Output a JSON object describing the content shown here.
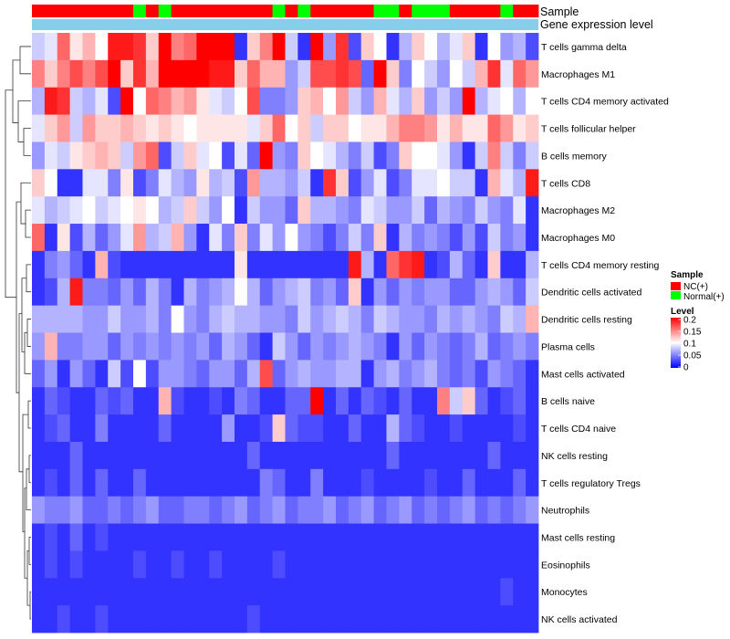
{
  "chart_data": {
    "type": "heatmap",
    "annotation_labels": {
      "sample": "Sample",
      "gene_level": "Gene expression level"
    },
    "rows": [
      "T cells gamma delta",
      "Macrophages M1",
      "T cells CD4 memory activated",
      "T cells follicular helper",
      "B cells memory",
      "T cells CD8",
      "Macrophages M2",
      "Macrophages M0",
      "T cells CD4 memory resting",
      "Dendritic cells activated",
      "Dendritic cells resting",
      "Plasma cells",
      "Mast cells activated",
      "B cells naive",
      "T cells CD4 naive",
      "NK cells resting",
      "T cells regulatory  Tregs",
      "Neutrophils",
      "Mast cells resting",
      "Eosinophils",
      "Monocytes",
      "NK cells activated"
    ],
    "sample_groups": [
      "NC",
      "NC",
      "NC",
      "NC",
      "NC",
      "NC",
      "NC",
      "NC",
      "Normal",
      "NC",
      "Normal",
      "NC",
      "NC",
      "NC",
      "NC",
      "NC",
      "NC",
      "NC",
      "NC",
      "Normal",
      "NC",
      "Normal",
      "NC",
      "NC",
      "NC",
      "NC",
      "NC",
      "Normal",
      "Normal",
      "NC",
      "Normal",
      "Normal",
      "Normal",
      "NC",
      "NC",
      "NC",
      "NC",
      "Normal",
      "NC",
      "NC"
    ],
    "values": [
      [
        0.08,
        0.09,
        0.16,
        0.11,
        0.13,
        0.1,
        0.19,
        0.19,
        0.18,
        0.12,
        0.2,
        0.15,
        0.16,
        0.2,
        0.2,
        0.2,
        0.02,
        0.12,
        0.15,
        0.2,
        0.08,
        0.02,
        0.2,
        0.06,
        0.18,
        0.03,
        0.12,
        0.1,
        0.02,
        0.07,
        0.12,
        0.1,
        0.07,
        0.09,
        0.12,
        0.02,
        0.1,
        0.06,
        0.07,
        0.03
      ],
      [
        0.15,
        0.12,
        0.15,
        0.17,
        0.15,
        0.17,
        0.2,
        0.12,
        0.18,
        0.13,
        0.2,
        0.2,
        0.2,
        0.2,
        0.19,
        0.19,
        0.12,
        0.16,
        0.13,
        0.13,
        0.06,
        0.08,
        0.17,
        0.17,
        0.18,
        0.17,
        0.04,
        0.2,
        0.12,
        0.05,
        0.1,
        0.08,
        0.06,
        0.1,
        0.08,
        0.13,
        0.18,
        0.09,
        0.16,
        0.14
      ],
      [
        0.07,
        0.19,
        0.18,
        0.08,
        0.07,
        0.09,
        0.03,
        0.2,
        0.1,
        0.16,
        0.15,
        0.13,
        0.14,
        0.11,
        0.09,
        0.08,
        0.1,
        0.17,
        0.05,
        0.05,
        0.06,
        0.12,
        0.13,
        0.1,
        0.14,
        0.08,
        0.06,
        0.13,
        0.09,
        0.07,
        0.12,
        0.06,
        0.08,
        0.06,
        0.2,
        0.07,
        0.09,
        0.1,
        0.07,
        0.1
      ],
      [
        0.09,
        0.12,
        0.14,
        0.08,
        0.14,
        0.12,
        0.12,
        0.13,
        0.12,
        0.11,
        0.12,
        0.11,
        0.1,
        0.11,
        0.11,
        0.11,
        0.11,
        0.09,
        0.12,
        0.16,
        0.1,
        0.12,
        0.08,
        0.12,
        0.12,
        0.1,
        0.11,
        0.11,
        0.13,
        0.15,
        0.15,
        0.14,
        0.11,
        0.13,
        0.11,
        0.11,
        0.16,
        0.14,
        0.11,
        0.12
      ],
      [
        0.06,
        0.09,
        0.08,
        0.11,
        0.12,
        0.13,
        0.12,
        0.08,
        0.14,
        0.16,
        0.03,
        0.08,
        0.12,
        0.09,
        0.1,
        0.03,
        0.09,
        0.04,
        0.2,
        0.06,
        0.05,
        0.12,
        0.1,
        0.09,
        0.07,
        0.05,
        0.08,
        0.03,
        0.05,
        0.12,
        0.1,
        0.1,
        0.09,
        0.06,
        0.02,
        0.08,
        0.15,
        0.08,
        0.05,
        0.08
      ],
      [
        0.12,
        0.1,
        0.02,
        0.02,
        0.09,
        0.09,
        0.05,
        0.11,
        0.03,
        0.05,
        0.09,
        0.07,
        0.06,
        0.11,
        0.07,
        0.08,
        0.03,
        0.14,
        0.07,
        0.07,
        0.06,
        0.08,
        0.02,
        0.18,
        0.12,
        0.03,
        0.06,
        0.09,
        0.03,
        0.05,
        0.09,
        0.09,
        0.1,
        0.08,
        0.08,
        0.02,
        0.13,
        0.09,
        0.07,
        0.19
      ],
      [
        0.09,
        0.07,
        0.08,
        0.09,
        0.1,
        0.08,
        0.09,
        0.1,
        0.11,
        0.1,
        0.07,
        0.08,
        0.12,
        0.08,
        0.06,
        0.1,
        0.02,
        0.08,
        0.06,
        0.06,
        0.04,
        0.12,
        0.07,
        0.07,
        0.06,
        0.05,
        0.09,
        0.08,
        0.06,
        0.06,
        0.08,
        0.04,
        0.07,
        0.06,
        0.05,
        0.08,
        0.06,
        0.05,
        0.09,
        0.02
      ],
      [
        0.16,
        0.02,
        0.11,
        0.03,
        0.07,
        0.04,
        0.06,
        0.09,
        0.14,
        0.07,
        0.08,
        0.13,
        0.06,
        0.02,
        0.09,
        0.05,
        0.12,
        0.05,
        0.09,
        0.06,
        0.1,
        0.06,
        0.05,
        0.03,
        0.05,
        0.08,
        0.05,
        0.12,
        0.02,
        0.07,
        0.05,
        0.06,
        0.05,
        0.03,
        0.06,
        0.03,
        0.08,
        0.05,
        0.06,
        0.02
      ],
      [
        0.02,
        0.05,
        0.06,
        0.04,
        0.02,
        0.13,
        0.03,
        0.02,
        0.02,
        0.02,
        0.02,
        0.02,
        0.02,
        0.02,
        0.02,
        0.02,
        0.11,
        0.02,
        0.02,
        0.02,
        0.02,
        0.02,
        0.02,
        0.02,
        0.02,
        0.19,
        0.07,
        0.02,
        0.16,
        0.18,
        0.19,
        0.02,
        0.03,
        0.07,
        0.04,
        0.02,
        0.12,
        0.02,
        0.02,
        0.07
      ],
      [
        0.02,
        0.03,
        0.07,
        0.19,
        0.05,
        0.05,
        0.04,
        0.06,
        0.04,
        0.07,
        0.05,
        0.02,
        0.07,
        0.05,
        0.06,
        0.07,
        0.1,
        0.07,
        0.04,
        0.06,
        0.07,
        0.08,
        0.05,
        0.06,
        0.04,
        0.12,
        0.02,
        0.06,
        0.04,
        0.06,
        0.05,
        0.06,
        0.06,
        0.04,
        0.04,
        0.06,
        0.07,
        0.06,
        0.04,
        0.08
      ],
      [
        0.07,
        0.07,
        0.07,
        0.07,
        0.06,
        0.06,
        0.08,
        0.06,
        0.06,
        0.07,
        0.05,
        0.1,
        0.06,
        0.05,
        0.07,
        0.08,
        0.07,
        0.07,
        0.06,
        0.06,
        0.05,
        0.08,
        0.06,
        0.07,
        0.08,
        0.07,
        0.05,
        0.08,
        0.07,
        0.06,
        0.06,
        0.05,
        0.07,
        0.06,
        0.07,
        0.06,
        0.05,
        0.08,
        0.07,
        0.13
      ],
      [
        0.06,
        0.13,
        0.05,
        0.05,
        0.06,
        0.06,
        0.04,
        0.06,
        0.05,
        0.06,
        0.05,
        0.06,
        0.05,
        0.06,
        0.04,
        0.07,
        0.06,
        0.04,
        0.02,
        0.08,
        0.06,
        0.04,
        0.06,
        0.05,
        0.06,
        0.07,
        0.06,
        0.05,
        0.02,
        0.06,
        0.04,
        0.06,
        0.05,
        0.04,
        0.05,
        0.07,
        0.04,
        0.05,
        0.06,
        0.05
      ],
      [
        0.04,
        0.06,
        0.02,
        0.06,
        0.04,
        0.02,
        0.08,
        0.03,
        0.1,
        0.03,
        0.06,
        0.06,
        0.05,
        0.04,
        0.06,
        0.06,
        0.04,
        0.07,
        0.17,
        0.04,
        0.06,
        0.07,
        0.06,
        0.06,
        0.07,
        0.07,
        0.02,
        0.06,
        0.07,
        0.05,
        0.06,
        0.07,
        0.05,
        0.04,
        0.05,
        0.03,
        0.06,
        0.05,
        0.04,
        0.02
      ],
      [
        0.02,
        0.04,
        0.03,
        0.02,
        0.02,
        0.04,
        0.03,
        0.04,
        0.02,
        0.02,
        0.13,
        0.03,
        0.02,
        0.02,
        0.03,
        0.02,
        0.05,
        0.04,
        0.02,
        0.02,
        0.04,
        0.04,
        0.2,
        0.02,
        0.04,
        0.02,
        0.04,
        0.03,
        0.02,
        0.04,
        0.02,
        0.02,
        0.15,
        0.08,
        0.12,
        0.04,
        0.02,
        0.03,
        0.04,
        0.02
      ],
      [
        0.02,
        0.03,
        0.04,
        0.02,
        0.02,
        0.05,
        0.02,
        0.02,
        0.02,
        0.02,
        0.04,
        0.02,
        0.02,
        0.02,
        0.02,
        0.06,
        0.02,
        0.02,
        0.03,
        0.12,
        0.04,
        0.03,
        0.03,
        0.02,
        0.02,
        0.04,
        0.02,
        0.02,
        0.07,
        0.04,
        0.03,
        0.02,
        0.02,
        0.03,
        0.02,
        0.02,
        0.02,
        0.02,
        0.03,
        0.02
      ],
      [
        0.02,
        0.02,
        0.02,
        0.04,
        0.02,
        0.02,
        0.02,
        0.02,
        0.02,
        0.02,
        0.02,
        0.02,
        0.02,
        0.02,
        0.02,
        0.02,
        0.02,
        0.04,
        0.02,
        0.02,
        0.02,
        0.02,
        0.02,
        0.02,
        0.02,
        0.02,
        0.02,
        0.02,
        0.04,
        0.02,
        0.02,
        0.02,
        0.02,
        0.02,
        0.02,
        0.02,
        0.04,
        0.02,
        0.02,
        0.02
      ],
      [
        0.02,
        0.03,
        0.02,
        0.04,
        0.02,
        0.04,
        0.02,
        0.02,
        0.04,
        0.02,
        0.02,
        0.02,
        0.02,
        0.02,
        0.02,
        0.02,
        0.02,
        0.02,
        0.05,
        0.04,
        0.02,
        0.02,
        0.05,
        0.02,
        0.02,
        0.02,
        0.03,
        0.02,
        0.02,
        0.02,
        0.02,
        0.03,
        0.02,
        0.02,
        0.04,
        0.02,
        0.02,
        0.02,
        0.04,
        0.02
      ],
      [
        0.06,
        0.05,
        0.05,
        0.06,
        0.04,
        0.04,
        0.05,
        0.04,
        0.05,
        0.06,
        0.04,
        0.04,
        0.05,
        0.05,
        0.04,
        0.05,
        0.06,
        0.04,
        0.05,
        0.06,
        0.04,
        0.05,
        0.05,
        0.06,
        0.04,
        0.05,
        0.06,
        0.04,
        0.05,
        0.06,
        0.04,
        0.05,
        0.04,
        0.05,
        0.06,
        0.04,
        0.05,
        0.04,
        0.05,
        0.06
      ],
      [
        0.02,
        0.03,
        0.02,
        0.04,
        0.02,
        0.03,
        0.02,
        0.02,
        0.02,
        0.02,
        0.02,
        0.02,
        0.02,
        0.02,
        0.02,
        0.02,
        0.02,
        0.02,
        0.02,
        0.02,
        0.02,
        0.02,
        0.02,
        0.02,
        0.02,
        0.02,
        0.02,
        0.02,
        0.02,
        0.02,
        0.02,
        0.02,
        0.02,
        0.02,
        0.02,
        0.02,
        0.02,
        0.02,
        0.02,
        0.02
      ],
      [
        0.02,
        0.03,
        0.02,
        0.03,
        0.02,
        0.02,
        0.02,
        0.02,
        0.03,
        0.02,
        0.02,
        0.03,
        0.02,
        0.02,
        0.03,
        0.02,
        0.02,
        0.02,
        0.02,
        0.03,
        0.02,
        0.02,
        0.02,
        0.02,
        0.02,
        0.02,
        0.02,
        0.02,
        0.02,
        0.02,
        0.02,
        0.02,
        0.02,
        0.02,
        0.02,
        0.02,
        0.02,
        0.02,
        0.02,
        0.02
      ],
      [
        0.02,
        0.02,
        0.02,
        0.02,
        0.02,
        0.02,
        0.02,
        0.02,
        0.02,
        0.02,
        0.02,
        0.02,
        0.02,
        0.02,
        0.02,
        0.02,
        0.02,
        0.02,
        0.02,
        0.02,
        0.02,
        0.02,
        0.02,
        0.02,
        0.02,
        0.02,
        0.02,
        0.02,
        0.02,
        0.02,
        0.02,
        0.02,
        0.02,
        0.02,
        0.02,
        0.02,
        0.02,
        0.03,
        0.02,
        0.02
      ],
      [
        0.02,
        0.02,
        0.03,
        0.02,
        0.02,
        0.03,
        0.02,
        0.02,
        0.02,
        0.02,
        0.02,
        0.02,
        0.02,
        0.02,
        0.02,
        0.02,
        0.02,
        0.03,
        0.02,
        0.02,
        0.02,
        0.02,
        0.02,
        0.02,
        0.02,
        0.02,
        0.02,
        0.02,
        0.02,
        0.02,
        0.02,
        0.02,
        0.02,
        0.02,
        0.02,
        0.02,
        0.02,
        0.02,
        0.02,
        0.02
      ]
    ],
    "legend_sample": {
      "title": "Sample",
      "items": [
        {
          "key": "NC",
          "label": "NC(+)",
          "color": "#ff0000"
        },
        {
          "key": "Normal",
          "label": "Normal(+)",
          "color": "#00ff00"
        }
      ]
    },
    "legend_level": {
      "title": "Level",
      "ticks": [
        "0.2",
        "0.15",
        "0.1",
        "0.05",
        "0"
      ],
      "min": 0,
      "max": 0.2,
      "colors": {
        "low": "#0000ff",
        "mid": "#ffffff",
        "high": "#ff0000"
      }
    },
    "gene_level_color": "#87ceeb"
  }
}
